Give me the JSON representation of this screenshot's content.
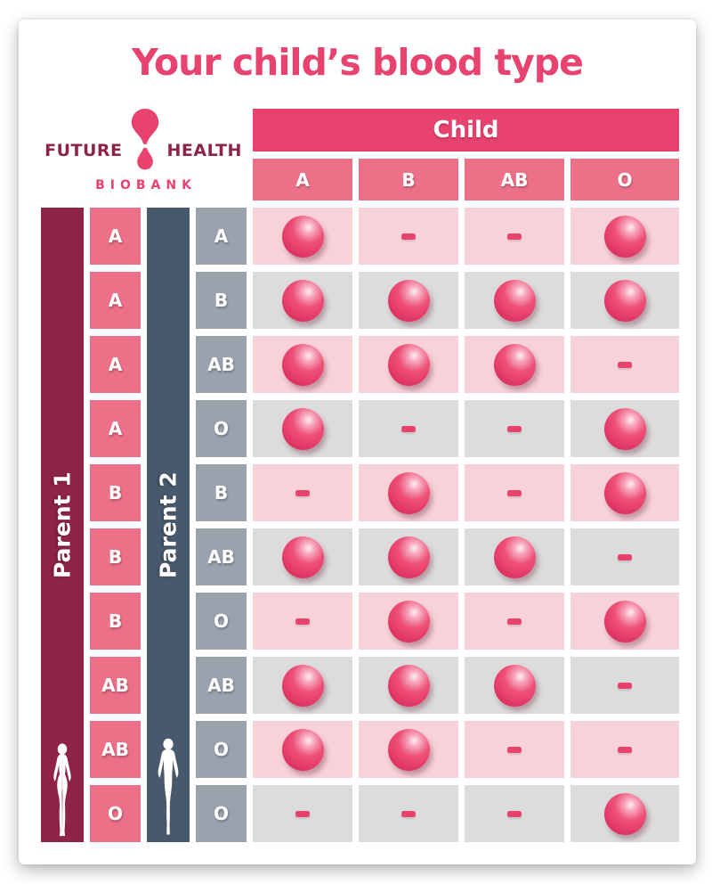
{
  "page": {
    "title": "Your child’s blood type"
  },
  "logo": {
    "word_left": "FUTURE",
    "word_right": "HEALTH",
    "subtext": "BIOBANK",
    "icon": "blood-drop-icon"
  },
  "table": {
    "child_header": "Child",
    "child_columns": [
      "A",
      "B",
      "AB",
      "O"
    ],
    "parent1_label": "Parent 1",
    "parent2_label": "Parent 2",
    "possible_marker": "pink-sphere-dot",
    "not_possible_marker": "dash",
    "rows": [
      {
        "parent1": "A",
        "parent2": "A",
        "child_possible": {
          "A": true,
          "B": false,
          "AB": false,
          "O": true
        }
      },
      {
        "parent1": "A",
        "parent2": "B",
        "child_possible": {
          "A": true,
          "B": true,
          "AB": true,
          "O": true
        }
      },
      {
        "parent1": "A",
        "parent2": "AB",
        "child_possible": {
          "A": true,
          "B": true,
          "AB": true,
          "O": false
        }
      },
      {
        "parent1": "A",
        "parent2": "O",
        "child_possible": {
          "A": true,
          "B": false,
          "AB": false,
          "O": true
        }
      },
      {
        "parent1": "B",
        "parent2": "B",
        "child_possible": {
          "A": false,
          "B": true,
          "AB": false,
          "O": true
        }
      },
      {
        "parent1": "B",
        "parent2": "AB",
        "child_possible": {
          "A": true,
          "B": true,
          "AB": true,
          "O": false
        }
      },
      {
        "parent1": "B",
        "parent2": "O",
        "child_possible": {
          "A": false,
          "B": true,
          "AB": false,
          "O": true
        }
      },
      {
        "parent1": "AB",
        "parent2": "AB",
        "child_possible": {
          "A": true,
          "B": true,
          "AB": true,
          "O": false
        }
      },
      {
        "parent1": "AB",
        "parent2": "O",
        "child_possible": {
          "A": true,
          "B": true,
          "AB": false,
          "O": false
        }
      },
      {
        "parent1": "O",
        "parent2": "O",
        "child_possible": {
          "A": false,
          "B": false,
          "AB": false,
          "O": true
        }
      }
    ]
  },
  "chart_data": {
    "type": "table",
    "title": "Your child’s blood type",
    "columns": [
      "Parent 1",
      "Parent 2",
      "Child A",
      "Child B",
      "Child AB",
      "Child O"
    ],
    "rows": [
      [
        "A",
        "A",
        "possible",
        "-",
        "-",
        "possible"
      ],
      [
        "A",
        "B",
        "possible",
        "possible",
        "possible",
        "possible"
      ],
      [
        "A",
        "AB",
        "possible",
        "possible",
        "possible",
        "-"
      ],
      [
        "A",
        "O",
        "possible",
        "-",
        "-",
        "possible"
      ],
      [
        "B",
        "B",
        "-",
        "possible",
        "-",
        "possible"
      ],
      [
        "B",
        "AB",
        "possible",
        "possible",
        "possible",
        "-"
      ],
      [
        "B",
        "O",
        "-",
        "possible",
        "-",
        "possible"
      ],
      [
        "AB",
        "AB",
        "possible",
        "possible",
        "possible",
        "-"
      ],
      [
        "AB",
        "O",
        "possible",
        "possible",
        "-",
        "-"
      ],
      [
        "O",
        "O",
        "-",
        "-",
        "-",
        "possible"
      ]
    ]
  },
  "colors": {
    "accent_pink": "#e8426e",
    "light_pink_cell": "#ec7188",
    "parent1_bar_maroon": "#8e2346",
    "parent2_bar_slate": "#48596b",
    "parent2_cell_gray": "#9aa2ad",
    "row_band_pink": "#f8d2d9",
    "row_band_gray": "#dcdcdc"
  }
}
